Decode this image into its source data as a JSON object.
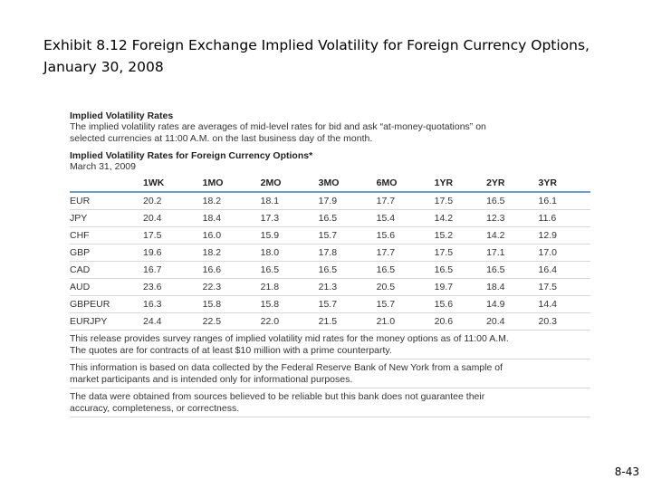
{
  "header": {
    "title_lines": [
      "Exhibit 8.12  Foreign Exchange Implied Volatility for Foreign Currency Options,",
      "January 30, 2008"
    ]
  },
  "exhibit": {
    "heading": "Implied Volatility Rates",
    "description": "The implied volatility rates are averages of mid-level rates for bid and ask “at-money-quotations” on selected currencies at 11:00 A.M. on the last business day of the month.",
    "subheading": "Implied Volatility Rates for Foreign Currency Options*",
    "date": "March 31, 2009",
    "table": {
      "columns": [
        "1WK",
        "1MO",
        "2MO",
        "3MO",
        "6MO",
        "1YR",
        "2YR",
        "3YR"
      ],
      "rows": [
        [
          "EUR",
          "20.2",
          "18.2",
          "18.1",
          "17.9",
          "17.7",
          "17.5",
          "16.5",
          "16.1"
        ],
        [
          "JPY",
          "20.4",
          "18.4",
          "17.3",
          "16.5",
          "15.4",
          "14.2",
          "12.3",
          "11.6"
        ],
        [
          "CHF",
          "17.5",
          "16.0",
          "15.9",
          "15.7",
          "15.6",
          "15.2",
          "14.2",
          "12.9"
        ],
        [
          "GBP",
          "19.6",
          "18.2",
          "18.0",
          "17.8",
          "17.7",
          "17.5",
          "17.1",
          "17.0"
        ],
        [
          "CAD",
          "16.7",
          "16.6",
          "16.5",
          "16.5",
          "16.5",
          "16.5",
          "16.5",
          "16.4"
        ],
        [
          "AUD",
          "23.6",
          "22.3",
          "21.8",
          "21.3",
          "20.5",
          "19.7",
          "18.4",
          "17.5"
        ],
        [
          "GBPEUR",
          "16.3",
          "15.8",
          "15.8",
          "15.7",
          "15.7",
          "15.6",
          "14.9",
          "14.4"
        ],
        [
          "EURJPY",
          "24.4",
          "22.5",
          "22.0",
          "21.5",
          "21.0",
          "20.6",
          "20.4",
          "20.3"
        ]
      ]
    },
    "notes": [
      "This release provides survey ranges of implied volatility mid rates for the money options as of 11:00 A.M. The quotes are for contracts of at least $10 million with a prime counterparty.",
      "This information is based on data collected by the Federal Reserve Bank of New York from a sample of market participants and is intended only for informational purposes.",
      "The data were obtained from sources believed to be reliable but this bank does not guarantee their accuracy, completeness, or correctness."
    ]
  },
  "footer": {
    "page_number": "8-43"
  }
}
